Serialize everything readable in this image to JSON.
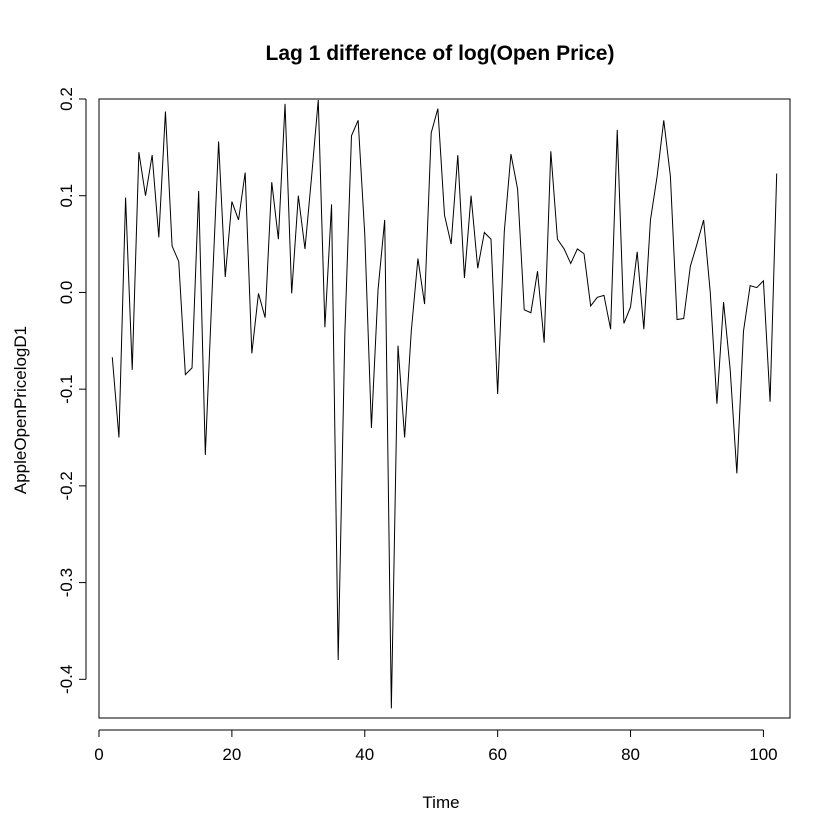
{
  "chart_data": {
    "type": "line",
    "title": "Lag 1 difference of log(Open Price)",
    "xlabel": "Time",
    "ylabel": "AppleOpenPricelogD1",
    "xlim": [
      0,
      104
    ],
    "ylim": [
      -0.44,
      0.2
    ],
    "grid": false,
    "legend": "none",
    "xticks": [
      0,
      20,
      40,
      60,
      80,
      100
    ],
    "yticks": [
      -0.4,
      -0.3,
      -0.2,
      -0.1,
      0.0,
      0.1,
      0.2
    ],
    "xtick_labels": [
      "0",
      "20",
      "40",
      "60",
      "80",
      "100"
    ],
    "ytick_labels": [
      "-0.4",
      "-0.3",
      "-0.2",
      "-0.1",
      "0.0",
      "0.1",
      "0.2"
    ],
    "line_color": "#000000",
    "series": [
      {
        "x": [
          2,
          3,
          4,
          5,
          6,
          7,
          8,
          9,
          10,
          11,
          12,
          13,
          14,
          15,
          16,
          17,
          18,
          19,
          20,
          21,
          22,
          23,
          24,
          25,
          26,
          27,
          28,
          29,
          30,
          31,
          32,
          33,
          34,
          35,
          36,
          37,
          38,
          39,
          40,
          41,
          42,
          43,
          44,
          45,
          46,
          47,
          48,
          49,
          50,
          51,
          52,
          53,
          54,
          55,
          56,
          57,
          58,
          59,
          60,
          61,
          62,
          63,
          64,
          65,
          66,
          67,
          68,
          69,
          70,
          71,
          72,
          73,
          74,
          75,
          76,
          77,
          78,
          79,
          80,
          81,
          82,
          83,
          84,
          85,
          86,
          87,
          88,
          89,
          90,
          91,
          92,
          93,
          94,
          95,
          96,
          97,
          98,
          99,
          100,
          101,
          102
        ],
        "values": [
          -0.067,
          -0.15,
          0.098,
          -0.08,
          0.145,
          0.1,
          0.142,
          0.057,
          0.187,
          0.048,
          0.032,
          -0.085,
          -0.078,
          0.105,
          -0.168,
          -0.002,
          0.156,
          0.016,
          0.094,
          0.075,
          0.124,
          -0.063,
          -0.001,
          -0.026,
          0.114,
          0.055,
          0.195,
          -0.001,
          0.1,
          0.045,
          0.12,
          0.199,
          -0.036,
          0.091,
          -0.38,
          -0.043,
          0.162,
          0.178,
          0.06,
          -0.14,
          0.003,
          0.075,
          -0.43,
          -0.055,
          -0.15,
          -0.04,
          0.035,
          -0.012,
          0.165,
          0.19,
          0.08,
          0.05,
          0.142,
          0.015,
          0.1,
          0.025,
          0.062,
          0.055,
          -0.105,
          0.063,
          0.143,
          0.107,
          -0.018,
          -0.021,
          0.022,
          -0.052,
          0.146,
          0.055,
          0.045,
          0.03,
          0.045,
          0.04,
          -0.014,
          -0.005,
          -0.003,
          -0.038,
          0.168,
          -0.032,
          -0.015,
          0.042,
          -0.038,
          0.075,
          0.12,
          0.178,
          0.12,
          -0.028,
          -0.027,
          0.027,
          0.05,
          0.075,
          0.0,
          -0.115,
          -0.01,
          -0.08,
          -0.187,
          -0.04,
          0.007,
          0.005,
          0.012,
          -0.113,
          0.123
        ]
      }
    ]
  }
}
